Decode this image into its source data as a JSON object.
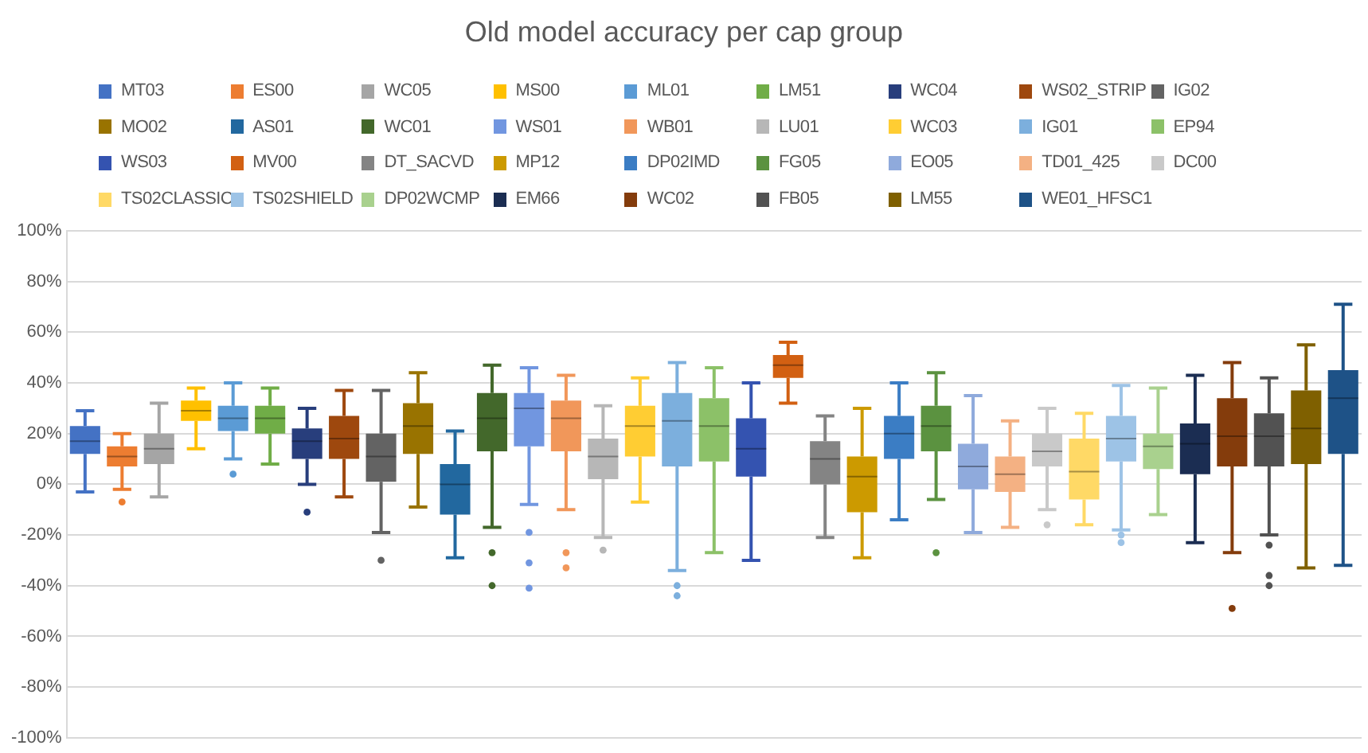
{
  "chart_data": {
    "type": "box",
    "title": "Old model accuracy per cap group",
    "categories": [
      null
    ],
    "legend": "top",
    "grid": "y",
    "ylim": [
      -100,
      100
    ],
    "yticks": [
      {
        "value": -100,
        "label": "-100%"
      },
      {
        "value": -80,
        "label": "-80%"
      },
      {
        "value": -60,
        "label": "-60%"
      },
      {
        "value": -40,
        "label": "-40%"
      },
      {
        "value": -20,
        "label": "-20%"
      },
      {
        "value": 0,
        "label": "0%"
      },
      {
        "value": 20,
        "label": "20%"
      },
      {
        "value": 40,
        "label": "40%"
      },
      {
        "value": 60,
        "label": "60%"
      },
      {
        "value": 80,
        "label": "80%"
      },
      {
        "value": 100,
        "label": "100%"
      }
    ],
    "series": [
      {
        "name": "MT03",
        "color": "#4472c4",
        "boxes": [
          {
            "low": -3,
            "q1": 12,
            "median": 17,
            "q3": 23,
            "high": 29
          }
        ]
      },
      {
        "name": "ES00",
        "color": "#ed7d31",
        "boxes": [
          {
            "low": -2,
            "q1": 7,
            "median": 11,
            "q3": 15,
            "high": 20,
            "outliers": [
              -7
            ]
          }
        ]
      },
      {
        "name": "WC05",
        "color": "#a5a5a5",
        "boxes": [
          {
            "low": -5,
            "q1": 8,
            "median": 14,
            "q3": 20,
            "high": 32
          }
        ]
      },
      {
        "name": "MS00",
        "color": "#ffc000",
        "boxes": [
          {
            "low": 14,
            "q1": 25,
            "median": 29,
            "q3": 33,
            "high": 38
          }
        ]
      },
      {
        "name": "ML01",
        "color": "#5b9bd5",
        "boxes": [
          {
            "low": 10,
            "q1": 21,
            "median": 26,
            "q3": 31,
            "high": 40,
            "outliers": [
              4
            ]
          }
        ]
      },
      {
        "name": "LM51",
        "color": "#70ad47",
        "boxes": [
          {
            "low": 8,
            "q1": 20,
            "median": 26,
            "q3": 31,
            "high": 38
          }
        ]
      },
      {
        "name": "WC04",
        "color": "#283e7c",
        "boxes": [
          {
            "low": 0,
            "q1": 10,
            "median": 17,
            "q3": 22,
            "high": 30,
            "outliers": [
              -11
            ]
          }
        ]
      },
      {
        "name": "WS02_STRIP",
        "color": "#9e480e",
        "boxes": [
          {
            "low": -5,
            "q1": 10,
            "median": 18,
            "q3": 27,
            "high": 37
          }
        ]
      },
      {
        "name": "IG02",
        "color": "#636363",
        "boxes": [
          {
            "low": -19,
            "q1": 1,
            "median": 11,
            "q3": 20,
            "high": 37,
            "outliers": [
              -30
            ]
          }
        ]
      },
      {
        "name": "MO02",
        "color": "#997300",
        "boxes": [
          {
            "low": -9,
            "q1": 12,
            "median": 23,
            "q3": 32,
            "high": 44
          }
        ]
      },
      {
        "name": "AS01",
        "color": "#22689f",
        "boxes": [
          {
            "low": -29,
            "q1": -12,
            "median": 0,
            "q3": 8,
            "high": 21
          }
        ]
      },
      {
        "name": "WC01",
        "color": "#43682b",
        "boxes": [
          {
            "low": -17,
            "q1": 13,
            "median": 26,
            "q3": 36,
            "high": 47,
            "outliers": [
              -27,
              -40
            ]
          }
        ]
      },
      {
        "name": "WS01",
        "color": "#7196e0",
        "boxes": [
          {
            "low": -8,
            "q1": 15,
            "median": 30,
            "q3": 36,
            "high": 46,
            "outliers": [
              -19,
              -31,
              -41
            ]
          }
        ]
      },
      {
        "name": "WB01",
        "color": "#f1975a",
        "boxes": [
          {
            "low": -10,
            "q1": 13,
            "median": 26,
            "q3": 33,
            "high": 43,
            "outliers": [
              -27,
              -33
            ]
          }
        ]
      },
      {
        "name": "LU01",
        "color": "#b7b7b7",
        "boxes": [
          {
            "low": -21,
            "q1": 2,
            "median": 11,
            "q3": 18,
            "high": 31,
            "outliers": [
              -26
            ]
          }
        ]
      },
      {
        "name": "WC03",
        "color": "#ffcd33",
        "boxes": [
          {
            "low": -7,
            "q1": 11,
            "median": 23,
            "q3": 31,
            "high": 42
          }
        ]
      },
      {
        "name": "IG01",
        "color": "#7cafdd",
        "boxes": [
          {
            "low": -34,
            "q1": 7,
            "median": 25,
            "q3": 36,
            "high": 48,
            "outliers": [
              -40,
              -44
            ]
          }
        ]
      },
      {
        "name": "EP94",
        "color": "#8cc168",
        "boxes": [
          {
            "low": -27,
            "q1": 9,
            "median": 23,
            "q3": 34,
            "high": 46
          }
        ]
      },
      {
        "name": "WS03",
        "color": "#3453b0",
        "boxes": [
          {
            "low": -30,
            "q1": 3,
            "median": 14,
            "q3": 26,
            "high": 40
          }
        ]
      },
      {
        "name": "MV00",
        "color": "#d26012",
        "boxes": [
          {
            "low": 32,
            "q1": 42,
            "median": 47,
            "q3": 51,
            "high": 56
          }
        ]
      },
      {
        "name": "DT_SACVD",
        "color": "#848484",
        "boxes": [
          {
            "low": -21,
            "q1": 0,
            "median": 10,
            "q3": 17,
            "high": 27
          }
        ]
      },
      {
        "name": "MP12",
        "color": "#cc9a00",
        "boxes": [
          {
            "low": -29,
            "q1": -11,
            "median": 3,
            "q3": 11,
            "high": 30
          }
        ]
      },
      {
        "name": "DP02IMD",
        "color": "#3b7dc4",
        "boxes": [
          {
            "low": -14,
            "q1": 10,
            "median": 20,
            "q3": 27,
            "high": 40
          }
        ]
      },
      {
        "name": "FG05",
        "color": "#5b9240",
        "boxes": [
          {
            "low": -6,
            "q1": 13,
            "median": 23,
            "q3": 31,
            "high": 44,
            "outliers": [
              -27
            ]
          }
        ]
      },
      {
        "name": "EO05",
        "color": "#8faadc",
        "boxes": [
          {
            "low": -19,
            "q1": -2,
            "median": 7,
            "q3": 16,
            "high": 35
          }
        ]
      },
      {
        "name": "TD01_425",
        "color": "#f4b183",
        "boxes": [
          {
            "low": -17,
            "q1": -3,
            "median": 4,
            "q3": 11,
            "high": 25
          }
        ]
      },
      {
        "name": "DC00",
        "color": "#c9c9c9",
        "boxes": [
          {
            "low": -10,
            "q1": 7,
            "median": 13,
            "q3": 20,
            "high": 30,
            "outliers": [
              -16
            ]
          }
        ]
      },
      {
        "name": "TS02CLASSIC",
        "color": "#ffd966",
        "boxes": [
          {
            "low": -16,
            "q1": -6,
            "median": 5,
            "q3": 18,
            "high": 28
          }
        ]
      },
      {
        "name": "TS02SHIELD",
        "color": "#9dc3e6",
        "boxes": [
          {
            "low": -18,
            "q1": 9,
            "median": 18,
            "q3": 27,
            "high": 39,
            "outliers": [
              -20,
              -23
            ]
          }
        ]
      },
      {
        "name": "DP02WCMP",
        "color": "#a9d18e",
        "boxes": [
          {
            "low": -12,
            "q1": 6,
            "median": 15,
            "q3": 20,
            "high": 38
          }
        ]
      },
      {
        "name": "EM66",
        "color": "#1b2d52",
        "boxes": [
          {
            "low": -23,
            "q1": 4,
            "median": 16,
            "q3": 24,
            "high": 43
          }
        ]
      },
      {
        "name": "WC02",
        "color": "#843c0c",
        "boxes": [
          {
            "low": -27,
            "q1": 7,
            "median": 19,
            "q3": 34,
            "high": 48,
            "outliers": [
              -49
            ]
          }
        ]
      },
      {
        "name": "FB05",
        "color": "#525252",
        "boxes": [
          {
            "low": -20,
            "q1": 7,
            "median": 19,
            "q3": 28,
            "high": 42,
            "outliers": [
              -24,
              -36,
              -40
            ]
          }
        ]
      },
      {
        "name": "LM55",
        "color": "#7f6000",
        "boxes": [
          {
            "low": -33,
            "q1": 8,
            "median": 22,
            "q3": 37,
            "high": 55
          }
        ]
      },
      {
        "name": "WE01_HFSC1",
        "color": "#1e5287",
        "boxes": [
          {
            "low": -32,
            "q1": 12,
            "median": 34,
            "q3": 45,
            "high": 71
          }
        ]
      }
    ]
  }
}
